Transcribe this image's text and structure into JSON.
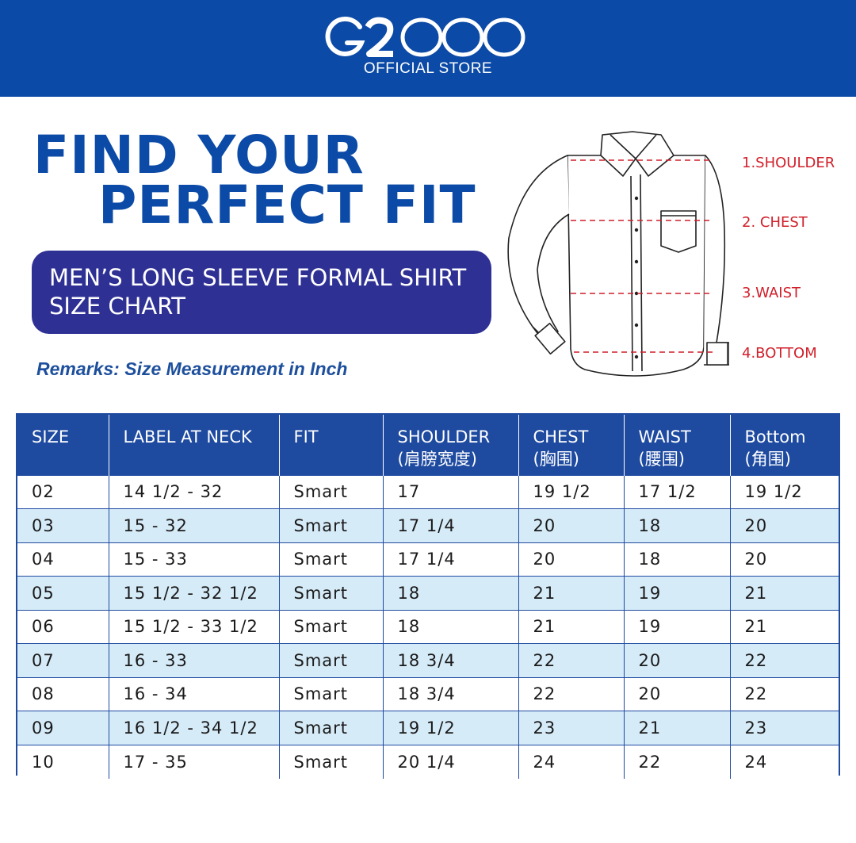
{
  "header": {
    "logo_text": "G2000",
    "subtitle": "OFFICIAL STORE",
    "brand_color": "#0b4aa6"
  },
  "title": {
    "line1": "FIND YOUR",
    "line2": "PERFECT FIT"
  },
  "banner": {
    "line1": "MEN’S LONG SLEEVE FORMAL SHIRT",
    "line2": "SIZE CHART",
    "color": "#2e3094"
  },
  "remarks": "Remarks: Size Measurement in Inch",
  "diagram": {
    "labels": [
      "1.SHOULDER",
      "2. CHEST",
      "3.WAIST",
      "4.BOTTOM"
    ],
    "label_color": "#d11f2a"
  },
  "table": {
    "headers": [
      {
        "line1": "SIZE",
        "line2": ""
      },
      {
        "line1": "LABEL AT NECK",
        "line2": ""
      },
      {
        "line1": "FIT",
        "line2": ""
      },
      {
        "line1": "SHOULDER",
        "line2": "(肩膀宽度)"
      },
      {
        "line1": "CHEST",
        "line2": "(胸围)"
      },
      {
        "line1": "WAIST",
        "line2": "(腰围)"
      },
      {
        "line1": "Bottom",
        "line2": "(角围)"
      }
    ],
    "rows": [
      [
        "02",
        "14 1/2 - 32",
        "Smart",
        "17",
        "19 1/2",
        "17 1/2",
        "19 1/2"
      ],
      [
        "03",
        "15 - 32",
        "Smart",
        "17 1/4",
        "20",
        "18",
        "20"
      ],
      [
        "04",
        "15 - 33",
        "Smart",
        "17 1/4",
        "20",
        "18",
        "20"
      ],
      [
        "05",
        "15 1/2 - 32 1/2",
        "Smart",
        "18",
        "21",
        "19",
        "21"
      ],
      [
        "06",
        "15 1/2 - 33 1/2",
        "Smart",
        "18",
        "21",
        "19",
        "21"
      ],
      [
        "07",
        "16 - 33",
        "Smart",
        "18 3/4",
        "22",
        "20",
        "22"
      ],
      [
        "08",
        "16 - 34",
        "Smart",
        "18 3/4",
        "22",
        "20",
        "22"
      ],
      [
        "09",
        "16 1/2 - 34 1/2",
        "Smart",
        "19 1/2",
        "23",
        "21",
        "23"
      ],
      [
        "10",
        "17 - 35",
        "Smart",
        "20 1/4",
        "24",
        "22",
        "24"
      ]
    ],
    "header_color": "#1e4aa0",
    "stripe_color": "#d6ebf8"
  }
}
